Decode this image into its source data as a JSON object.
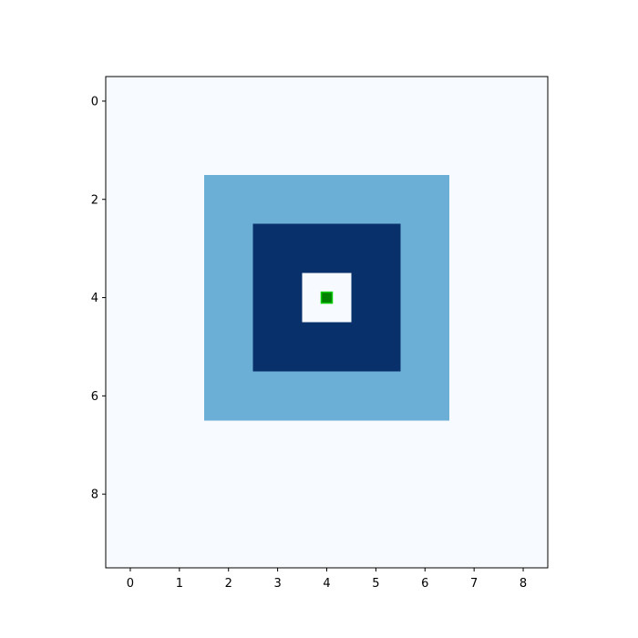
{
  "chart_data": {
    "type": "heatmap",
    "colormap": "Blues",
    "colors": {
      "0": "#f7fbff",
      "1": "#6baed6",
      "2": "#08306b",
      "marker_face": "#008000",
      "marker_edge": "#00cc00"
    },
    "grid": false,
    "rows": 10,
    "cols": 9,
    "xlim": [
      -0.5,
      8.5
    ],
    "ylim": [
      9.5,
      -0.5
    ],
    "x_ticks": [
      0,
      1,
      2,
      3,
      4,
      5,
      6,
      7,
      8
    ],
    "y_ticks": [
      0,
      2,
      4,
      6,
      8
    ],
    "x_tick_labels": [
      "0",
      "1",
      "2",
      "3",
      "4",
      "5",
      "6",
      "7",
      "8"
    ],
    "y_tick_labels": [
      "0",
      "2",
      "4",
      "6",
      "8"
    ],
    "values": [
      [
        0,
        0,
        0,
        0,
        0,
        0,
        0,
        0,
        0
      ],
      [
        0,
        0,
        0,
        0,
        0,
        0,
        0,
        0,
        0
      ],
      [
        0,
        0,
        1,
        1,
        1,
        1,
        1,
        0,
        0
      ],
      [
        0,
        0,
        1,
        2,
        2,
        2,
        1,
        0,
        0
      ],
      [
        0,
        0,
        1,
        2,
        0,
        2,
        1,
        0,
        0
      ],
      [
        0,
        0,
        1,
        2,
        2,
        2,
        1,
        0,
        0
      ],
      [
        0,
        0,
        1,
        1,
        1,
        1,
        1,
        0,
        0
      ],
      [
        0,
        0,
        0,
        0,
        0,
        0,
        0,
        0,
        0
      ],
      [
        0,
        0,
        0,
        0,
        0,
        0,
        0,
        0,
        0
      ],
      [
        0,
        0,
        0,
        0,
        0,
        0,
        0,
        0,
        0
      ]
    ],
    "marker": {
      "shape": "square",
      "x": 4,
      "y": 4
    }
  }
}
